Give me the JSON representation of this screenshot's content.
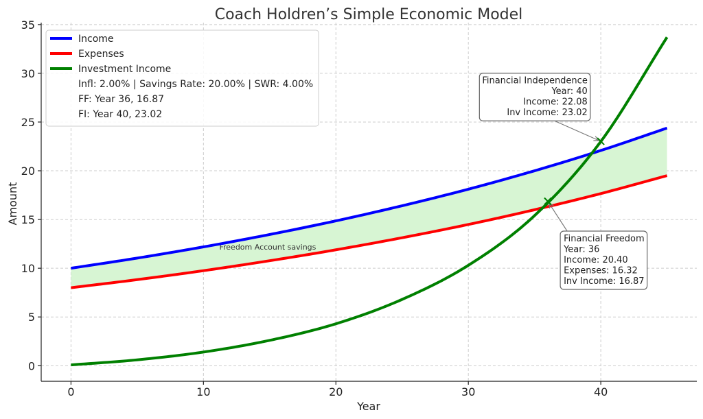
{
  "chart_data": {
    "type": "line",
    "title": "Coach Holdren’s Simple Economic Model",
    "xlabel": "Year",
    "ylabel": "Amount",
    "xlim": [
      -2.25,
      47.25
    ],
    "ylim": [
      -1.6,
      35.2
    ],
    "x_ticks": [
      0,
      10,
      20,
      30,
      40
    ],
    "y_ticks": [
      0,
      5,
      10,
      15,
      20,
      25,
      30,
      35
    ],
    "grid": true,
    "legend_position": "top-left",
    "series": [
      {
        "name": "Income",
        "color": "#0000ff",
        "x": [
          0,
          5,
          10,
          15,
          20,
          25,
          30,
          35,
          40,
          45
        ],
        "values": [
          10.0,
          11.04,
          12.19,
          13.46,
          14.86,
          16.41,
          18.11,
          20.0,
          22.08,
          24.38
        ]
      },
      {
        "name": "Expenses",
        "color": "#ff0000",
        "x": [
          0,
          5,
          10,
          15,
          20,
          25,
          30,
          35,
          40,
          45
        ],
        "values": [
          8.0,
          8.83,
          9.75,
          10.77,
          11.89,
          13.13,
          14.49,
          16.0,
          17.66,
          19.5
        ]
      },
      {
        "name": "Investment Income",
        "color": "#008000",
        "x": [
          0,
          5,
          10,
          15,
          20,
          25,
          30,
          35,
          40,
          45
        ],
        "values": [
          0.08,
          0.6,
          1.4,
          2.6,
          4.3,
          6.8,
          10.3,
          15.4,
          23.0,
          33.7
        ]
      }
    ],
    "fill_between": {
      "upper": "Income",
      "lower": "Expenses",
      "color": "#d7f5d3",
      "label": "Freedom Account savings",
      "label_x": 11.2,
      "label_y": 11.9
    },
    "legend_notes": [
      "Infl: 2.00% | Savings Rate: 20.00% | SWR: 4.00%",
      "FF: Year 36, 16.87",
      "FI: Year 40, 23.02"
    ],
    "annotations": [
      {
        "lines": [
          "Financial Independence",
          "Year: 40",
          "Income: 22.08",
          "Inv Income: 23.02"
        ],
        "align": "right",
        "point_x": 40,
        "point_y": 23.02,
        "text_x": 39.0,
        "text_y": 29.8
      },
      {
        "lines": [
          "Financial Freedom",
          "Year: 36",
          "Income: 20.40",
          "Expenses: 16.32",
          "Inv Income: 16.87"
        ],
        "align": "left",
        "point_x": 36,
        "point_y": 16.87,
        "text_x": 37.2,
        "text_y": 13.6
      }
    ]
  }
}
